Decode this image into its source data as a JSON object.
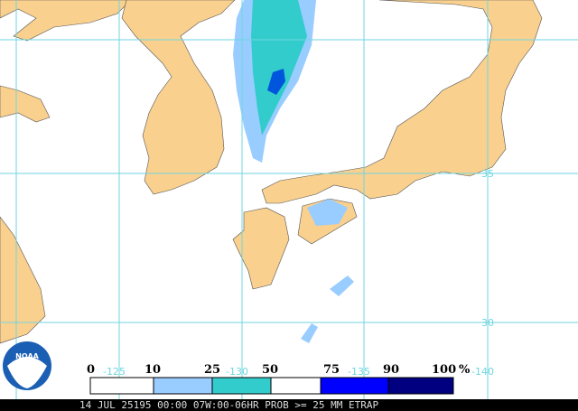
{
  "header": {
    "logo": "NOAA"
  },
  "grid": {
    "lon_labels": [
      "-125",
      "-130",
      "-135",
      "-140"
    ],
    "lat_labels": [
      "35",
      "30"
    ]
  },
  "legend": {
    "labels": [
      "0",
      "10",
      "25",
      "50",
      "75",
      "90",
      "100"
    ],
    "unit": "%"
  },
  "footer": {
    "text": "14 JUL 25195 00:00 07W:00-06HR PROB >= 25 MM ETRAP"
  }
}
